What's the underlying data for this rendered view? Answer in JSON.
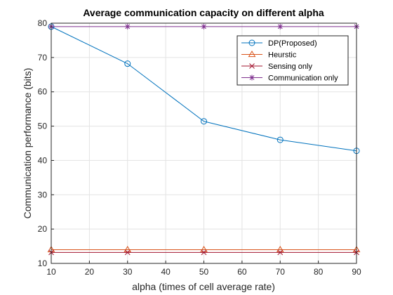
{
  "chart_data": {
    "type": "line",
    "title": "Average communication capacity on different alpha",
    "xlabel": "alpha (times of cell average rate)",
    "ylabel": "Communication performance (bits)",
    "xlim": [
      10,
      90
    ],
    "ylim": [
      10,
      80
    ],
    "xticks": [
      10,
      20,
      30,
      40,
      50,
      60,
      70,
      80,
      90
    ],
    "yticks": [
      10,
      20,
      30,
      40,
      50,
      60,
      70,
      80
    ],
    "grid": true,
    "legend_position": "top-right",
    "x": [
      10,
      30,
      50,
      70,
      90
    ],
    "series": [
      {
        "name": "DP(Proposed)",
        "color": "#0072BD",
        "marker": "circle",
        "values": [
          79,
          68.2,
          51.4,
          46,
          42.8
        ]
      },
      {
        "name": "Heurstic",
        "color": "#D95319",
        "marker": "triangle",
        "values": [
          14,
          14,
          14,
          14,
          14
        ]
      },
      {
        "name": "Sensing only",
        "color": "#A2142F",
        "marker": "x",
        "values": [
          13.2,
          13.2,
          13.2,
          13.2,
          13.2
        ]
      },
      {
        "name": "Communication only",
        "color": "#7E2F8E",
        "marker": "star",
        "values": [
          79,
          79,
          79,
          79,
          79
        ]
      }
    ]
  }
}
